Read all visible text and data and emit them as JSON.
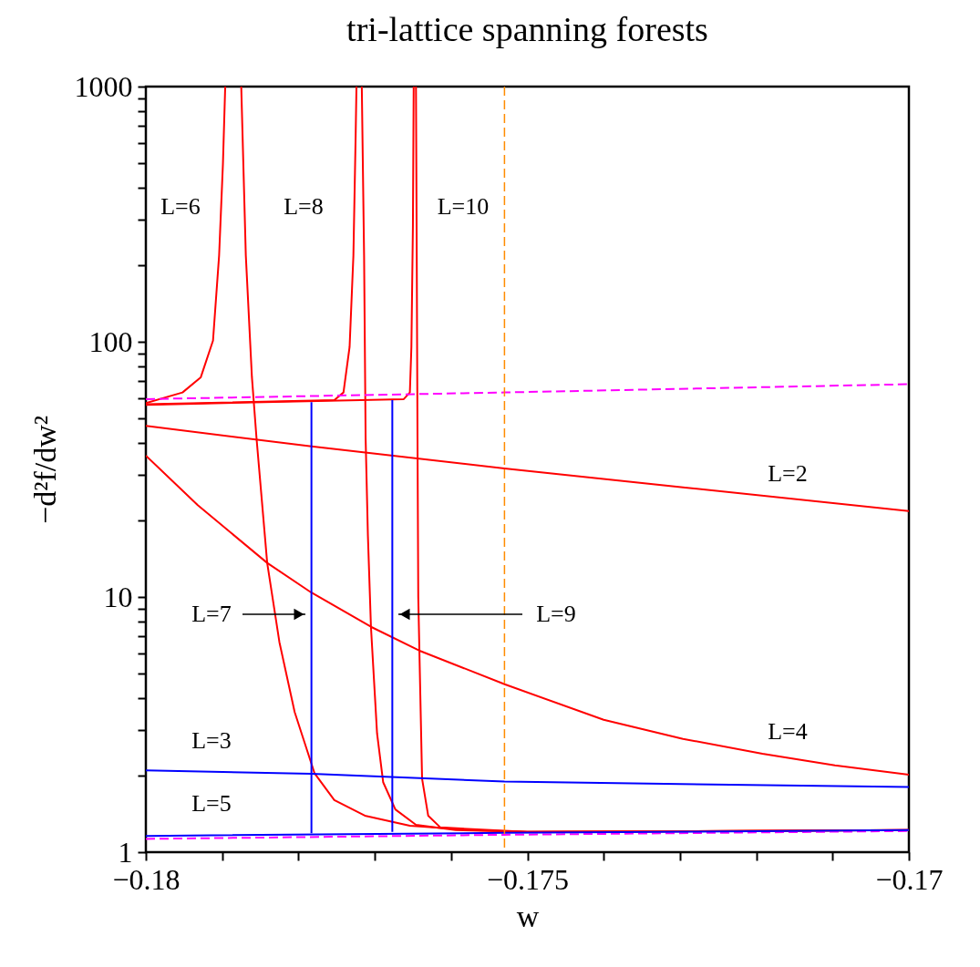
{
  "chart_data": {
    "type": "line",
    "title": "tri-lattice spanning forests",
    "xlabel": "w",
    "ylabel": "−d²f/dw²",
    "log": "y",
    "xlim": [
      -0.18,
      -0.17
    ],
    "xticks": [
      -0.18,
      {
        "value": -0.179,
        "label": null
      },
      {
        "value": -0.178,
        "label": null
      },
      {
        "value": -0.177,
        "label": null
      },
      {
        "value": -0.176,
        "label": null
      },
      -0.175,
      {
        "value": -0.174,
        "label": null
      },
      {
        "value": -0.173,
        "label": null
      },
      {
        "value": -0.172,
        "label": null
      },
      {
        "value": -0.171,
        "label": null
      },
      -0.17
    ],
    "ylim": [
      1,
      1000
    ],
    "yticks": [
      1,
      {
        "value": 2,
        "label": null
      },
      {
        "value": 3,
        "label": null
      },
      {
        "value": 4,
        "label": null
      },
      {
        "value": 5,
        "label": null
      },
      {
        "value": 6,
        "label": null
      },
      {
        "value": 7,
        "label": null
      },
      {
        "value": 8,
        "label": null
      },
      {
        "value": 9,
        "label": null
      },
      10,
      {
        "value": 20,
        "label": null
      },
      {
        "value": 30,
        "label": null
      },
      {
        "value": 40,
        "label": null
      },
      {
        "value": 50,
        "label": null
      },
      {
        "value": 60,
        "label": null
      },
      {
        "value": 70,
        "label": null
      },
      {
        "value": 80,
        "label": null
      },
      {
        "value": 90,
        "label": null
      },
      100,
      {
        "value": 200,
        "label": null
      },
      {
        "value": 300,
        "label": null
      },
      {
        "value": 400,
        "label": null
      },
      {
        "value": 500,
        "label": null
      },
      {
        "value": 600,
        "label": null
      },
      {
        "value": 700,
        "label": null
      },
      {
        "value": 800,
        "label": null
      },
      {
        "value": 900,
        "label": null
      },
      1000
    ],
    "series": [
      {
        "color": "#ff0000",
        "x": [
          -0.18,
          -0.17783,
          -0.1753,
          -0.17296,
          -0.17
        ],
        "values": [
          46.8,
          38.9,
          31.9,
          26.9,
          21.7
        ]
      },
      {
        "color": "#ff0000",
        "x": [
          -0.18,
          -0.17932,
          -0.17841,
          -0.17783,
          -0.17705,
          -0.17642,
          -0.17529,
          -0.174,
          -0.17296,
          -0.17192,
          -0.17097,
          -0.17
        ],
        "values": [
          35.8,
          22.9,
          13.6,
          10.4,
          7.64,
          6.17,
          4.54,
          3.3,
          2.78,
          2.43,
          2.19,
          2.01
        ]
      },
      {
        "color": "#ff0000",
        "x": [
          -0.18,
          -0.17952,
          -0.17928,
          -0.17912,
          -0.17904,
          -0.17899,
          -0.17896
        ],
        "values": [
          57.5,
          63.3,
          72.6,
          101,
          218,
          497,
          1000
        ]
      },
      {
        "color": "#ff0000",
        "x": [
          -0.17875,
          -0.17869,
          -0.17861,
          -0.17855,
          -0.17841,
          -0.17825,
          -0.17805,
          -0.17779,
          -0.17753,
          -0.17713,
          -0.17654,
          -0.17574,
          -0.175,
          -0.17
        ],
        "values": [
          1000,
          218,
          72.6,
          42,
          13.6,
          6.66,
          3.54,
          2.04,
          1.6,
          1.39,
          1.27,
          1.22,
          1.2,
          1.22
        ]
      },
      {
        "color": "#ff0000",
        "x": [
          -0.18,
          -0.17753,
          -0.17741,
          -0.17733,
          -0.17728,
          -0.17725,
          -0.17724
        ],
        "values": [
          56.9,
          59.1,
          63.3,
          95.4,
          218,
          656,
          1000
        ]
      },
      {
        "color": "#ff0000",
        "x": [
          -0.17717,
          -0.17714,
          -0.17712,
          -0.17709,
          -0.17705,
          -0.17697,
          -0.17689,
          -0.17673,
          -0.17646,
          -0.17594,
          -0.175,
          -0.17
        ],
        "values": [
          1000,
          218,
          42,
          17.4,
          7.64,
          2.92,
          1.88,
          1.47,
          1.28,
          1.22,
          1.2,
          1.22
        ]
      },
      {
        "color": "#ff0000",
        "x": [
          -0.18,
          -0.17662,
          -0.17654,
          -0.17652,
          -0.1765,
          -0.17649
        ],
        "values": [
          56.6,
          59.6,
          63.3,
          95.4,
          286,
          1000
        ]
      },
      {
        "color": "#ff0000",
        "x": [
          -0.17646,
          -0.17645,
          -0.17644,
          -0.17643,
          -0.17638,
          -0.1763,
          -0.17614,
          -0.175,
          -0.17
        ],
        "values": [
          1000,
          218,
          42,
          10,
          1.94,
          1.39,
          1.25,
          1.2,
          1.22
        ]
      },
      {
        "color": "#ff00ff",
        "line_style": "dashed",
        "x": [
          -0.18,
          -0.1753,
          -0.17
        ],
        "values": [
          59.6,
          63.3,
          68.2
        ]
      },
      {
        "color": "#ff00ff",
        "line_style": "dashed",
        "x": [
          -0.18,
          -0.1753,
          -0.17
        ],
        "values": [
          1.127,
          1.17,
          1.21
        ]
      },
      {
        "color": "#0000ff",
        "x": [
          -0.18,
          -0.17783,
          -0.1753,
          -0.17
        ],
        "values": [
          2.09,
          2.03,
          1.89,
          1.8
        ]
      },
      {
        "color": "#0000ff",
        "x": [
          -0.18,
          -0.1753,
          -0.17
        ],
        "values": [
          1.158,
          1.19,
          1.22
        ]
      },
      {
        "color": "#0000ff",
        "x": [
          -0.17783,
          -0.17783
        ],
        "values": [
          1.187,
          58
        ]
      },
      {
        "color": "#0000ff",
        "x": [
          -0.17677,
          -0.17677
        ],
        "values": [
          1.2,
          59.1
        ]
      }
    ],
    "ref_lines": [
      {
        "axis": "x",
        "value": -0.1753,
        "color": "#ff8c00",
        "line_style": "dashed"
      }
    ],
    "annotations": [
      "L=6",
      "L=8",
      "L=10",
      "L=2",
      "L=4",
      "L=3",
      "L=5",
      "L=7",
      "L=9"
    ]
  }
}
